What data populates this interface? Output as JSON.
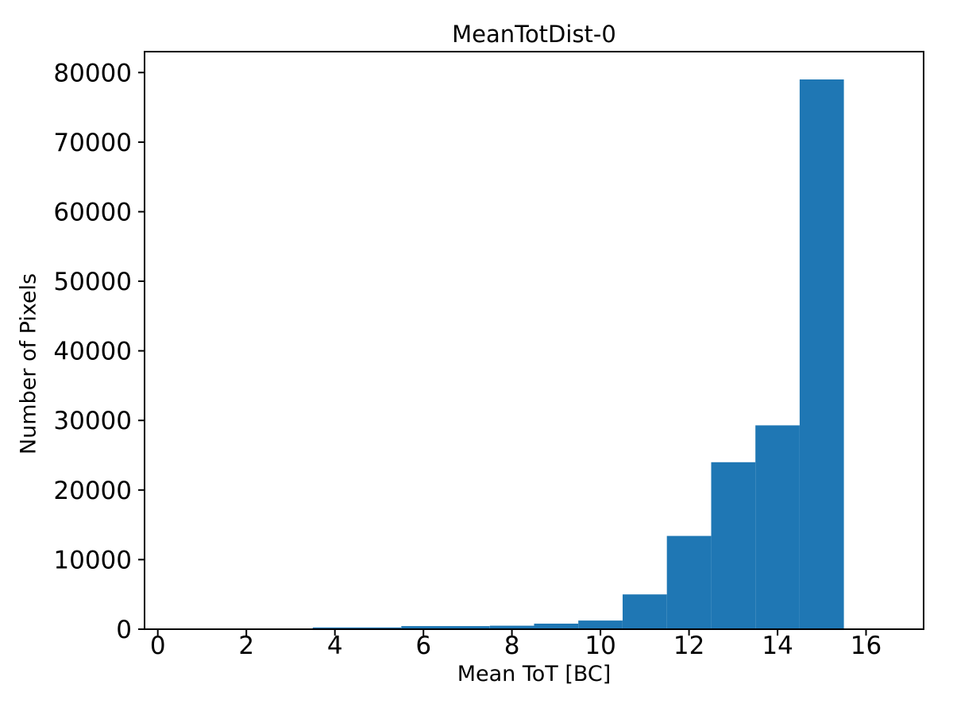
{
  "figure": {
    "background": "#ffffff"
  },
  "chart_data": {
    "type": "bar",
    "subtype": "histogram",
    "title": "MeanTotDist-0",
    "xlabel": "Mean ToT [BC]",
    "ylabel": "Number of Pixels",
    "bar_color": "#1f77b4",
    "axis_color": "#000000",
    "text_color": "#000000",
    "grid": false,
    "bin_edges": [
      0.5,
      1.5,
      2.5,
      3.5,
      4.5,
      5.5,
      6.5,
      7.5,
      8.5,
      9.5,
      10.5,
      11.5,
      12.5,
      13.5,
      14.5,
      15.5,
      16.5
    ],
    "counts": [
      0,
      0,
      0,
      250,
      250,
      450,
      450,
      500,
      800,
      1250,
      5000,
      13400,
      24000,
      29300,
      79000,
      0
    ],
    "xticks": [
      0,
      2,
      4,
      6,
      8,
      10,
      12,
      14,
      16
    ],
    "yticks": [
      0,
      10000,
      20000,
      30000,
      40000,
      50000,
      60000,
      70000,
      80000
    ],
    "xlim": [
      -0.3,
      17.3
    ],
    "ylim": [
      0,
      83000
    ]
  }
}
